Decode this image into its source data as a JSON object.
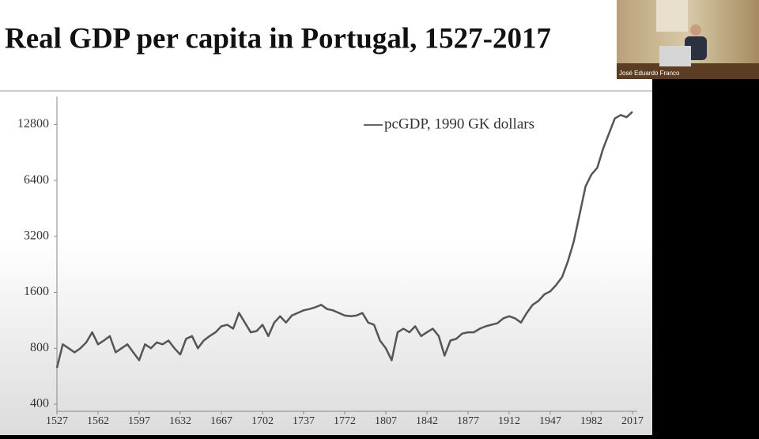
{
  "chart_data": {
    "type": "line",
    "title": "Real GDP per capita in Portugal, 1527-2017",
    "x": [
      1527,
      1532,
      1537,
      1542,
      1547,
      1552,
      1557,
      1562,
      1567,
      1572,
      1577,
      1582,
      1587,
      1592,
      1597,
      1602,
      1607,
      1612,
      1617,
      1622,
      1627,
      1632,
      1637,
      1642,
      1647,
      1652,
      1657,
      1662,
      1667,
      1672,
      1677,
      1682,
      1687,
      1692,
      1697,
      1702,
      1707,
      1712,
      1717,
      1722,
      1727,
      1732,
      1737,
      1742,
      1747,
      1752,
      1757,
      1762,
      1767,
      1772,
      1777,
      1782,
      1787,
      1792,
      1797,
      1802,
      1807,
      1812,
      1817,
      1822,
      1827,
      1832,
      1837,
      1842,
      1847,
      1852,
      1857,
      1862,
      1867,
      1872,
      1877,
      1882,
      1887,
      1892,
      1897,
      1902,
      1907,
      1912,
      1917,
      1922,
      1927,
      1932,
      1937,
      1942,
      1947,
      1952,
      1957,
      1962,
      1967,
      1972,
      1977,
      1982,
      1987,
      1992,
      1997,
      2002,
      2007,
      2012,
      2017
    ],
    "series": [
      {
        "name": "pcGDP, 1990 GK dollars",
        "color": "#555555",
        "values": [
          628,
          840,
          800,
          760,
          800,
          860,
          975,
          840,
          880,
          930,
          760,
          800,
          840,
          760,
          690,
          840,
          800,
          860,
          840,
          880,
          800,
          740,
          900,
          930,
          800,
          880,
          930,
          975,
          1050,
          1070,
          1020,
          1240,
          1100,
          975,
          990,
          1070,
          930,
          1100,
          1190,
          1100,
          1200,
          1240,
          1280,
          1300,
          1330,
          1370,
          1300,
          1280,
          1240,
          1200,
          1190,
          1200,
          1240,
          1100,
          1070,
          880,
          800,
          690,
          975,
          1020,
          975,
          1050,
          930,
          975,
          1020,
          930,
          730,
          880,
          900,
          960,
          975,
          975,
          1020,
          1050,
          1070,
          1090,
          1160,
          1190,
          1160,
          1100,
          1240,
          1370,
          1440,
          1560,
          1620,
          1750,
          1930,
          2350,
          3000,
          4200,
          5940,
          6880,
          7480,
          9500,
          11460,
          13800,
          14400,
          14000,
          15000
        ]
      }
    ],
    "xlim": [
      1527,
      2017
    ],
    "xticks": [
      1527,
      1562,
      1597,
      1632,
      1667,
      1702,
      1737,
      1772,
      1807,
      1842,
      1877,
      1912,
      1947,
      1982,
      2017
    ],
    "ylim": [
      400,
      19200
    ],
    "yticks": [
      400,
      800,
      1600,
      3200,
      6400,
      12800
    ],
    "log_y": true
  },
  "video_tile": {
    "participant": "José Eduardo Franco"
  }
}
